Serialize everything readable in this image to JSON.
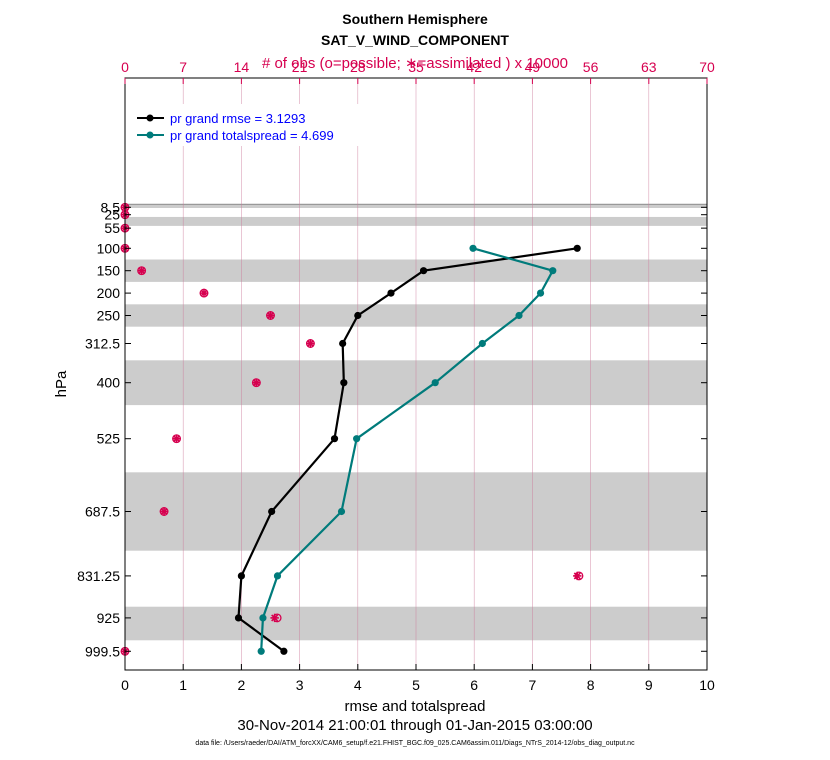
{
  "chart_data": {
    "type": "line",
    "title": "Southern Hemisphere",
    "subtitle": "SAT_V_WIND_COMPONENT",
    "xlabel": "rmse and totalspread",
    "ylabel": "hPa",
    "top_xlabel": "# of obs (o=possible; ∗=assimilated ) x 10000",
    "date_range": "30-Nov-2014 21:00:01 through 01-Jan-2015 03:00:00",
    "data_file": "data file: /Users/raeder/DAI/ATM_forcXX/CAM6_setup/f.e21.FHIST_BGC.f09_025.CAM6assim.011/Diags_NTrS_2014-12/obs_diag_output.nc",
    "xlim": [
      0,
      10
    ],
    "xticks": [
      0,
      1,
      2,
      3,
      4,
      5,
      6,
      7,
      8,
      9,
      10
    ],
    "top_xlim": [
      0,
      70
    ],
    "top_xticks": [
      0,
      7,
      14,
      21,
      28,
      35,
      42,
      49,
      56,
      63,
      70
    ],
    "ytick_labels": [
      "8.5",
      "25",
      "55",
      "100",
      "150",
      "200",
      "250",
      "312.5",
      "400",
      "525",
      "687.5",
      "831.25",
      "925",
      "999.5"
    ],
    "levels": [
      8.5,
      25,
      55,
      100,
      150,
      200,
      250,
      312.5,
      400,
      525,
      687.5,
      831.25,
      925,
      999.5
    ],
    "series": [
      {
        "name": "rmse",
        "legend": "pr grand rmse = 3.1293",
        "color": "#000000",
        "points": [
          {
            "level": 100,
            "value": 7.77
          },
          {
            "level": 150,
            "value": 5.13
          },
          {
            "level": 200,
            "value": 4.57
          },
          {
            "level": 250,
            "value": 4.0
          },
          {
            "level": 312.5,
            "value": 3.74
          },
          {
            "level": 400,
            "value": 3.76
          },
          {
            "level": 525,
            "value": 3.6
          },
          {
            "level": 687.5,
            "value": 2.52
          },
          {
            "level": 831.25,
            "value": 2.0
          },
          {
            "level": 925,
            "value": 1.95
          },
          {
            "level": 999.5,
            "value": 2.73
          }
        ]
      },
      {
        "name": "totalspread",
        "legend": "pr grand totalspread = 4.699",
        "color": "#007b7b",
        "points": [
          {
            "level": 100,
            "value": 5.98
          },
          {
            "level": 150,
            "value": 7.35
          },
          {
            "level": 200,
            "value": 7.14
          },
          {
            "level": 250,
            "value": 6.77
          },
          {
            "level": 312.5,
            "value": 6.14
          },
          {
            "level": 400,
            "value": 5.33
          },
          {
            "level": 525,
            "value": 3.98
          },
          {
            "level": 687.5,
            "value": 3.72
          },
          {
            "level": 831.25,
            "value": 2.62
          },
          {
            "level": 925,
            "value": 2.37
          },
          {
            "level": 999.5,
            "value": 2.34
          }
        ]
      }
    ],
    "obs_possible": [
      {
        "level": 8.5,
        "count": 0.0
      },
      {
        "level": 25,
        "count": 0.0
      },
      {
        "level": 55,
        "count": 0.0
      },
      {
        "level": 100,
        "count": 0.0
      },
      {
        "level": 150,
        "count": 2.0
      },
      {
        "level": 200,
        "count": 9.5
      },
      {
        "level": 250,
        "count": 17.5
      },
      {
        "level": 312.5,
        "count": 22.3
      },
      {
        "level": 400,
        "count": 15.8
      },
      {
        "level": 525,
        "count": 6.2
      },
      {
        "level": 687.5,
        "count": 4.7
      },
      {
        "level": 831.25,
        "count": 54.6
      },
      {
        "level": 925,
        "count": 18.3
      },
      {
        "level": 999.5,
        "count": 0.0
      }
    ],
    "obs_assimilated": [
      {
        "level": 8.5,
        "count": 0.0
      },
      {
        "level": 25,
        "count": 0.0
      },
      {
        "level": 55,
        "count": 0.0
      },
      {
        "level": 100,
        "count": 0.0
      },
      {
        "level": 150,
        "count": 2.0
      },
      {
        "level": 200,
        "count": 9.5
      },
      {
        "level": 250,
        "count": 17.5
      },
      {
        "level": 312.5,
        "count": 22.3
      },
      {
        "level": 400,
        "count": 15.8
      },
      {
        "level": 525,
        "count": 6.2
      },
      {
        "level": 687.5,
        "count": 4.7
      },
      {
        "level": 831.25,
        "count": 54.4
      },
      {
        "level": 925,
        "count": 18.0
      },
      {
        "level": 999.5,
        "count": 0.0
      }
    ],
    "layer_bands": [
      [
        0,
        10
      ],
      [
        30,
        50
      ],
      [
        125,
        175
      ],
      [
        225,
        275
      ],
      [
        350,
        450
      ],
      [
        600,
        775
      ],
      [
        900,
        975
      ]
    ],
    "colors": {
      "obs": "#d6004f",
      "band": "#cccccc",
      "grid": "#cc7799"
    }
  }
}
